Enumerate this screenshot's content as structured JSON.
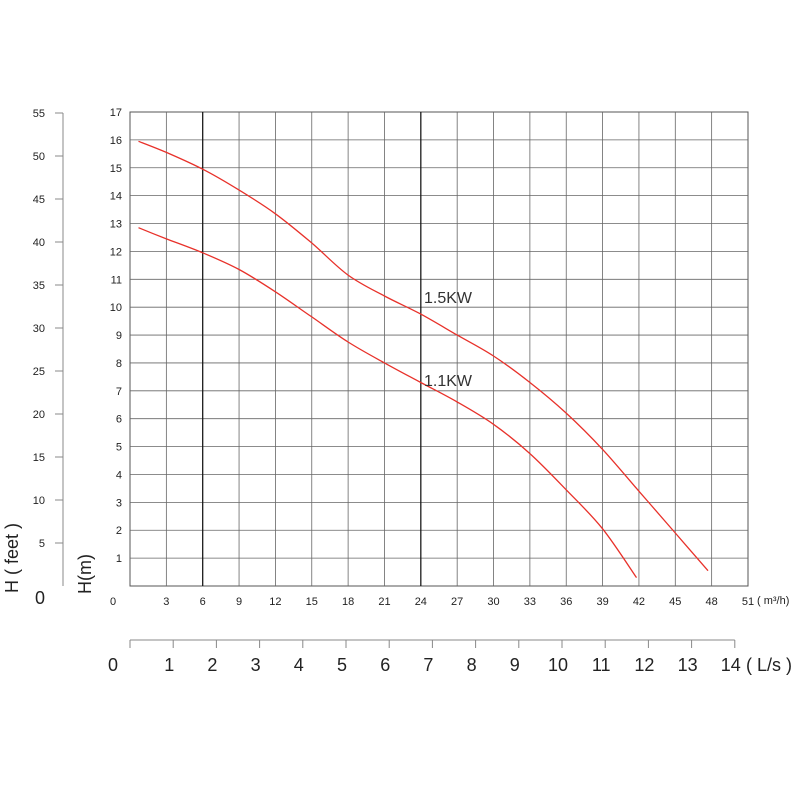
{
  "chart_data": {
    "type": "line",
    "y_feet_axis": {
      "label": "H ( feet )",
      "zero_label": "0",
      "ticks": [
        "5",
        "10",
        "15",
        "20",
        "25",
        "30",
        "35",
        "40",
        "45",
        "50",
        "55"
      ]
    },
    "y_m_axis": {
      "label": "H(m)",
      "range": [
        0,
        17
      ],
      "ticks": [
        "1",
        "2",
        "3",
        "4",
        "5",
        "6",
        "7",
        "8",
        "9",
        "10",
        "11",
        "12",
        "13",
        "14",
        "15",
        "16",
        "17"
      ]
    },
    "x_m3h_axis": {
      "range": [
        0,
        51
      ],
      "ticks": [
        "0",
        "3",
        "6",
        "9",
        "12",
        "15",
        "18",
        "21",
        "24",
        "27",
        "30",
        "33",
        "36",
        "39",
        "42",
        "45",
        "48",
        "51"
      ],
      "unit": "( m³/h)"
    },
    "x_ls_axis": {
      "ticks": [
        "0",
        "1",
        "2",
        "3",
        "4",
        "5",
        "6",
        "7",
        "8",
        "9",
        "10",
        "11",
        "12",
        "13",
        "14"
      ],
      "unit": "( L/s )"
    },
    "series": [
      {
        "name": "1.5KW",
        "color": "#e8312a",
        "points": [
          [
            0.7,
            15.95
          ],
          [
            3,
            15.55
          ],
          [
            6,
            14.95
          ],
          [
            9,
            14.2
          ],
          [
            12,
            13.35
          ],
          [
            15,
            12.3
          ],
          [
            18,
            11.15
          ],
          [
            21,
            10.4
          ],
          [
            24,
            9.75
          ],
          [
            27,
            9.0
          ],
          [
            30,
            8.25
          ],
          [
            33,
            7.3
          ],
          [
            36,
            6.2
          ],
          [
            39,
            4.9
          ],
          [
            42,
            3.4
          ],
          [
            45,
            1.9
          ],
          [
            47.7,
            0.55
          ]
        ]
      },
      {
        "name": "1.1KW",
        "color": "#e8312a",
        "points": [
          [
            0.7,
            12.85
          ],
          [
            3,
            12.45
          ],
          [
            6,
            11.95
          ],
          [
            9,
            11.35
          ],
          [
            12,
            10.55
          ],
          [
            15,
            9.65
          ],
          [
            18,
            8.75
          ],
          [
            21,
            8.0
          ],
          [
            24,
            7.3
          ],
          [
            27,
            6.6
          ],
          [
            30,
            5.8
          ],
          [
            33,
            4.75
          ],
          [
            36,
            3.45
          ],
          [
            39,
            2.05
          ],
          [
            41.8,
            0.3
          ]
        ]
      }
    ],
    "vertical_markers_m3h": [
      6,
      24
    ]
  }
}
